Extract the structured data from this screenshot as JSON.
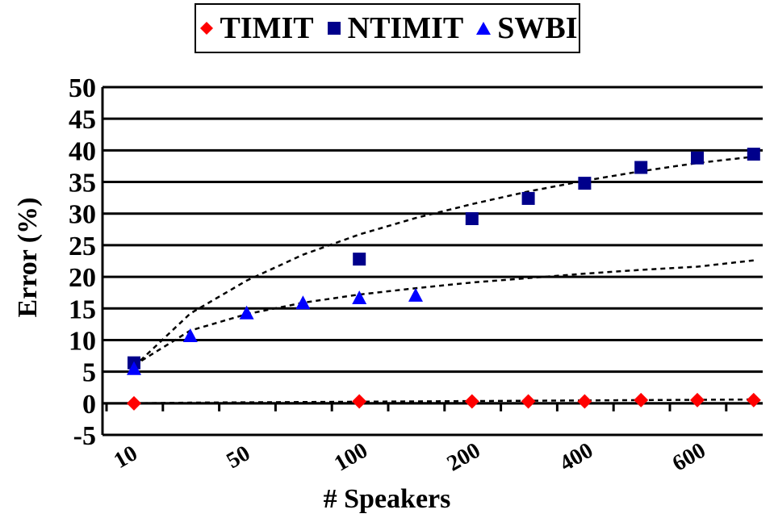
{
  "chart_data": {
    "type": "scatter",
    "xlabel": "# Speakers",
    "ylabel": "Error (%)",
    "ylim": [
      -5,
      50
    ],
    "yticks": [
      "-5",
      "0",
      "5",
      "10",
      "15",
      "20",
      "25",
      "30",
      "35",
      "40",
      "45",
      "50"
    ],
    "xtick_labels": [
      "10",
      "50",
      "100",
      "200",
      "400",
      "600"
    ],
    "grid": "horizontal",
    "legend_position": "top",
    "series": [
      {
        "name": "TIMIT",
        "marker": "diamond",
        "color": "#ff0000",
        "x": [
          "10",
          "",
          "",
          "",
          "100",
          "",
          "200",
          "",
          "400",
          "",
          "600",
          ""
        ],
        "values": [
          0.0,
          null,
          null,
          null,
          0.3,
          null,
          0.3,
          0.3,
          0.3,
          0.5,
          0.5,
          0.5
        ],
        "trend": [
          0.0,
          0.1,
          0.15,
          0.2,
          0.25,
          0.3,
          0.35,
          0.4,
          0.45,
          0.5,
          0.55,
          0.6
        ]
      },
      {
        "name": "NTIMIT",
        "marker": "square",
        "color": "#00008b",
        "values": [
          6.4,
          null,
          null,
          null,
          22.8,
          null,
          29.2,
          32.4,
          34.8,
          37.3,
          38.8,
          39.4
        ],
        "trend": [
          5.8,
          14.2,
          19.4,
          23.5,
          26.7,
          29.3,
          31.5,
          33.5,
          35.2,
          36.7,
          38.0,
          39.0
        ]
      },
      {
        "name": "SWBI",
        "marker": "triangle",
        "color": "#0000ff",
        "values": [
          5.5,
          10.7,
          14.3,
          15.9,
          16.7,
          17.1,
          null,
          null,
          null,
          null,
          null,
          null
        ],
        "trend": [
          6.0,
          11.5,
          14.1,
          15.9,
          17.2,
          18.2,
          19.1,
          19.8,
          20.5,
          21.1,
          21.6,
          22.6
        ]
      }
    ]
  }
}
